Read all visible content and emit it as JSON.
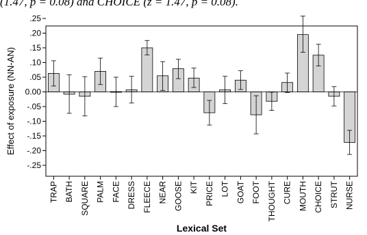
{
  "header_text": "(1.47, p = 0.08) and CHOICE (z = 1.47, p = 0.08).",
  "chart_data": {
    "type": "bar",
    "title": "",
    "xlabel": "Lexical Set",
    "ylabel": "Effect of exposure (NN-AN)",
    "ylim": [
      -0.27,
      0.27
    ],
    "yticks": [
      ".25",
      ".20",
      ".15",
      ".10",
      ".05",
      "0.00",
      "-.05",
      "-.10",
      "-.15",
      "-.20",
      "-.25"
    ],
    "ytick_values": [
      0.25,
      0.2,
      0.15,
      0.1,
      0.05,
      0.0,
      -0.05,
      -0.1,
      -0.15,
      -0.2,
      -0.25
    ],
    "grid": false,
    "bar_color": "#d4d4d4",
    "error_bars": true,
    "categories": [
      "TRAP",
      "BATH",
      "SQUARE",
      "PALM",
      "FACE",
      "DRESS",
      "FLEECE",
      "NEAR",
      "GOOSE",
      "KIT",
      "PRICE",
      "LOT",
      "GOAT",
      "FOOT",
      "THOUGHT",
      "CURE",
      "MOUTH",
      "CHOICE",
      "STRUT",
      "NURSE"
    ],
    "values": [
      0.063,
      -0.008,
      -0.015,
      0.07,
      0.001,
      0.007,
      0.15,
      0.055,
      0.079,
      0.047,
      -0.071,
      0.007,
      0.04,
      -0.078,
      -0.032,
      0.032,
      0.195,
      0.125,
      -0.015,
      -0.172
    ],
    "err_low": [
      0.02,
      -0.073,
      -0.082,
      0.025,
      -0.05,
      -0.038,
      0.126,
      0.005,
      0.045,
      0.015,
      -0.113,
      -0.04,
      0.008,
      -0.143,
      -0.063,
      -0.002,
      0.135,
      0.088,
      -0.048,
      -0.213
    ],
    "err_high": [
      0.106,
      0.058,
      0.052,
      0.115,
      0.05,
      0.053,
      0.175,
      0.103,
      0.111,
      0.081,
      -0.029,
      0.053,
      0.072,
      -0.013,
      -0.001,
      0.064,
      0.258,
      0.162,
      0.018,
      -0.131
    ]
  }
}
